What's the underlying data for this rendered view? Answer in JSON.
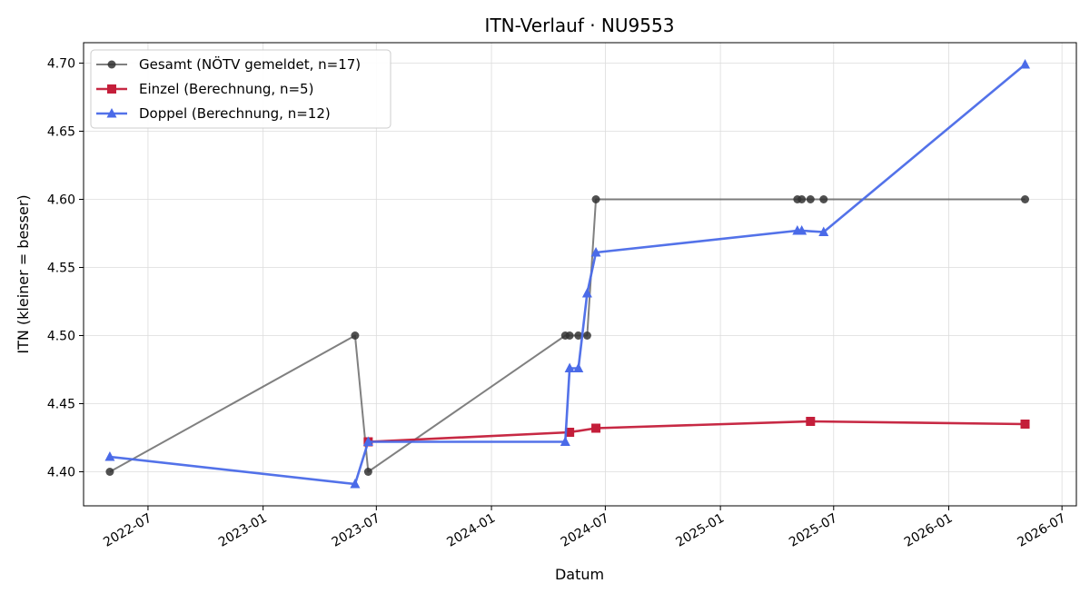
{
  "chart_data": {
    "type": "line",
    "title": "ITN-Verlauf · NU9553",
    "xlabel": "Datum",
    "ylabel": "ITN  (kleiner = besser)",
    "xlim": [
      "2022-03-20",
      "2026-07-24"
    ],
    "ylim": [
      4.375,
      4.715
    ],
    "grid": true,
    "legend_position": "top-left",
    "x_ticks": [
      "2022-07",
      "2023-01",
      "2023-07",
      "2024-01",
      "2024-07",
      "2025-01",
      "2025-07",
      "2026-01",
      "2026-07"
    ],
    "y_ticks": [
      "4.40",
      "4.45",
      "4.50",
      "4.55",
      "4.60",
      "4.65",
      "4.70"
    ],
    "series": [
      {
        "name": "Gesamt (NÖTV gemeldet, n=17)",
        "color": "#555555",
        "marker": "circle",
        "points": [
          {
            "x": "2022-05-01",
            "y": 4.4
          },
          {
            "x": "2023-05-28",
            "y": 4.5
          },
          {
            "x": "2023-06-18",
            "y": 4.4
          },
          {
            "x": "2024-04-28",
            "y": 4.5
          },
          {
            "x": "2024-05-05",
            "y": 4.5
          },
          {
            "x": "2024-05-19",
            "y": 4.5
          },
          {
            "x": "2024-06-02",
            "y": 4.5
          },
          {
            "x": "2024-06-16",
            "y": 4.6
          },
          {
            "x": "2025-05-04",
            "y": 4.6
          },
          {
            "x": "2025-05-11",
            "y": 4.6
          },
          {
            "x": "2025-05-25",
            "y": 4.6
          },
          {
            "x": "2025-06-15",
            "y": 4.6
          },
          {
            "x": "2026-05-03",
            "y": 4.6
          }
        ]
      },
      {
        "name": "Einzel (Berechnung, n=5)",
        "color": "#c41e3a",
        "marker": "square",
        "points": [
          {
            "x": "2023-06-18",
            "y": 4.422
          },
          {
            "x": "2024-05-05",
            "y": 4.429
          },
          {
            "x": "2024-06-16",
            "y": 4.432
          },
          {
            "x": "2025-05-25",
            "y": 4.437
          },
          {
            "x": "2026-05-03",
            "y": 4.435
          }
        ]
      },
      {
        "name": "Doppel (Berechnung, n=12)",
        "color": "#4a6ae8",
        "marker": "triangle",
        "points": [
          {
            "x": "2022-05-01",
            "y": 4.411
          },
          {
            "x": "2023-05-28",
            "y": 4.391
          },
          {
            "x": "2023-06-18",
            "y": 4.422
          },
          {
            "x": "2024-04-28",
            "y": 4.422
          },
          {
            "x": "2024-05-05",
            "y": 4.476
          },
          {
            "x": "2024-05-19",
            "y": 4.476
          },
          {
            "x": "2024-06-02",
            "y": 4.531
          },
          {
            "x": "2024-06-16",
            "y": 4.561
          },
          {
            "x": "2025-05-04",
            "y": 4.577
          },
          {
            "x": "2025-05-11",
            "y": 4.577
          },
          {
            "x": "2025-06-15",
            "y": 4.576
          },
          {
            "x": "2026-05-03",
            "y": 4.699
          }
        ]
      }
    ]
  }
}
